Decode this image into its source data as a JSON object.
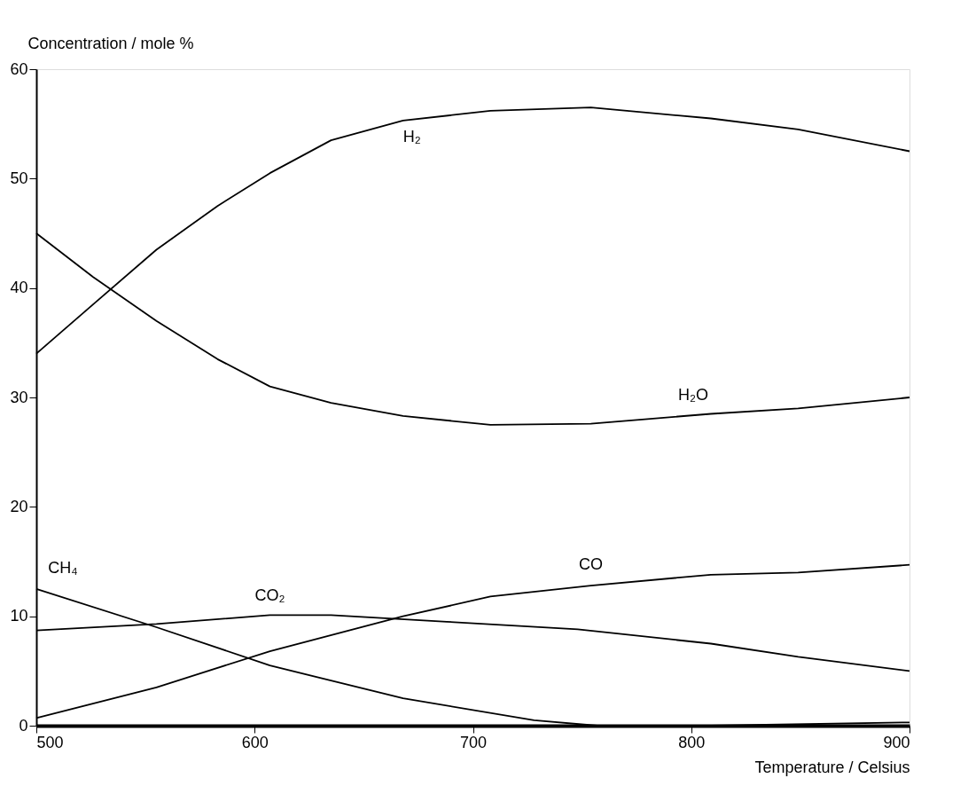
{
  "chart_data": {
    "type": "line",
    "xlabel": "Temperature / Celsius",
    "ylabel": "Concentration / mole %",
    "xlim": [
      500,
      900
    ],
    "ylim": [
      0,
      60
    ],
    "xticks": [
      500,
      600,
      700,
      800,
      900
    ],
    "yticks": [
      0,
      10,
      20,
      30,
      40,
      50,
      60
    ],
    "grid": false,
    "legend": false,
    "marker": "none",
    "line_style": "solid",
    "x": [
      500,
      526,
      555,
      583,
      607,
      635,
      668,
      708,
      754,
      809,
      849,
      900
    ],
    "series": [
      {
        "name": "H₂",
        "color": "#000000",
        "values": [
          34,
          38.5,
          43.5,
          47.5,
          50.5,
          53.5,
          55.3,
          56.2,
          56.5,
          55.5,
          54.5,
          52.5
        ]
      },
      {
        "name": "H₂O",
        "color": "#000000",
        "values": [
          45,
          41,
          37,
          33.5,
          31,
          29.5,
          28.3,
          27.5,
          27.6,
          28.5,
          29,
          30
        ]
      },
      {
        "name": "CH₄",
        "color": "#000000",
        "x": [
          500,
          555,
          607,
          668,
          728,
          757,
          809,
          900
        ],
        "values": [
          12.5,
          9,
          5.5,
          2.5,
          0.5,
          0,
          0,
          0.3
        ]
      },
      {
        "name": "CO₂",
        "color": "#000000",
        "x": [
          500,
          555,
          607,
          635,
          688,
          748,
          809,
          849,
          900
        ],
        "values": [
          8.7,
          9.3,
          10.1,
          10.1,
          9.5,
          8.8,
          7.5,
          6.3,
          5
        ]
      },
      {
        "name": "CO",
        "color": "#000000",
        "x": [
          500,
          555,
          607,
          668,
          708,
          754,
          809,
          849,
          900
        ],
        "values": [
          0.7,
          3.5,
          6.8,
          10,
          11.8,
          12.8,
          13.8,
          14,
          14.7
        ]
      }
    ]
  }
}
